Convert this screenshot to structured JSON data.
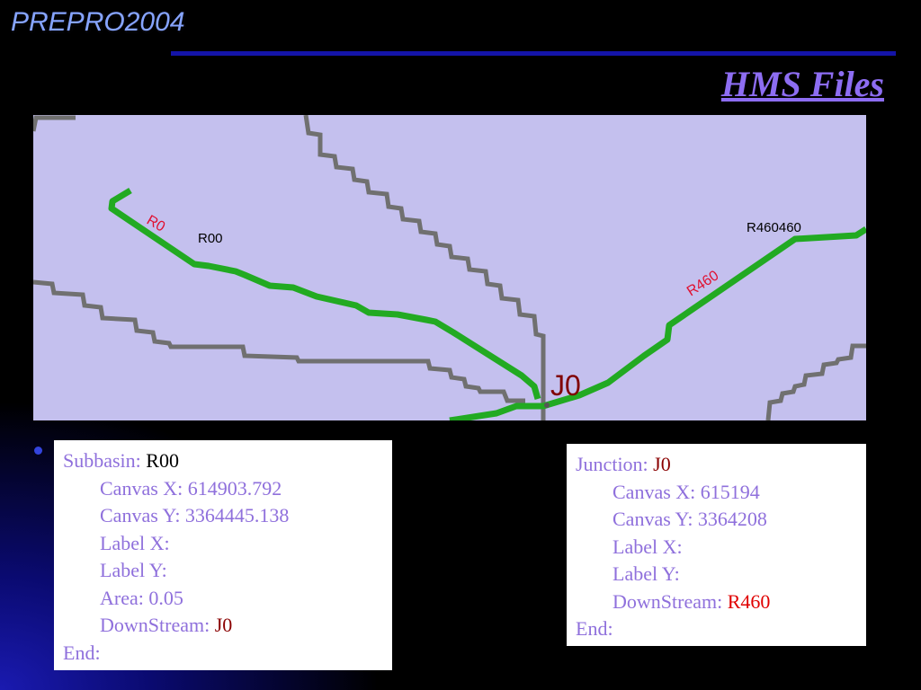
{
  "header": {
    "title": "PREPRO2004",
    "subtitle": "HMS Files"
  },
  "map": {
    "labels": {
      "reach_r0": "R0",
      "subbasin_r00": "R00",
      "subbasin_r460": "R460460",
      "reach_r460": "R460",
      "junction_j0": "J0"
    }
  },
  "subbasin_box": {
    "lines": [
      {
        "label": "Subbasin:",
        "value": "R00"
      },
      {
        "label": "Canvas X: 614903.792"
      },
      {
        "label": "Canvas Y: 3364445.138"
      },
      {
        "label": "Label X:"
      },
      {
        "label": "Label Y:"
      },
      {
        "label": "Area: 0.05"
      },
      {
        "label": "DownStream:",
        "value": "J0"
      },
      {
        "label": "End:"
      }
    ]
  },
  "junction_box": {
    "lines": [
      {
        "label": "Junction:",
        "value": "J0"
      },
      {
        "label": "Canvas X: 615194"
      },
      {
        "label": "Canvas Y: 3364208"
      },
      {
        "label": "Label X:"
      },
      {
        "label": "Label Y:"
      },
      {
        "label": "DownStream:",
        "value": "R460"
      },
      {
        "label": "End:"
      }
    ]
  }
}
